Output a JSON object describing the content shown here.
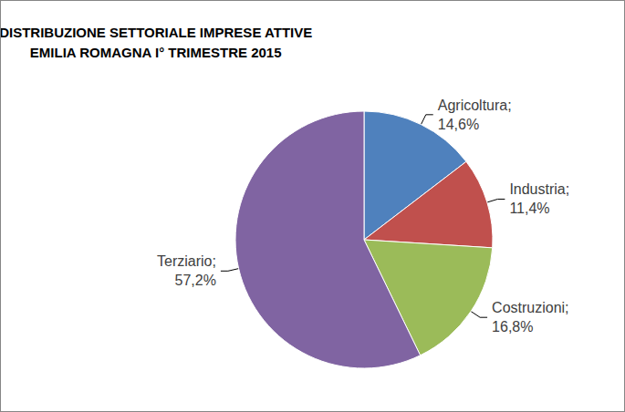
{
  "chart_data": {
    "type": "pie",
    "title": "DISTRIBUZIONE SETTORIALE IMPRESE ATTIVE\nEMILIA ROMAGNA I° TRIMESTRE 2015",
    "categories": [
      "Agricoltura;",
      "Industria;",
      "Costruzioni;",
      "Terziario;"
    ],
    "values": [
      14.6,
      11.4,
      16.8,
      57.2
    ],
    "value_labels": [
      "14,6%",
      "11,4%",
      "16,8%",
      "57,2%"
    ],
    "colors": [
      "#4f81bd",
      "#c0504d",
      "#9bbb59",
      "#8064a2"
    ],
    "data_labels": true
  }
}
